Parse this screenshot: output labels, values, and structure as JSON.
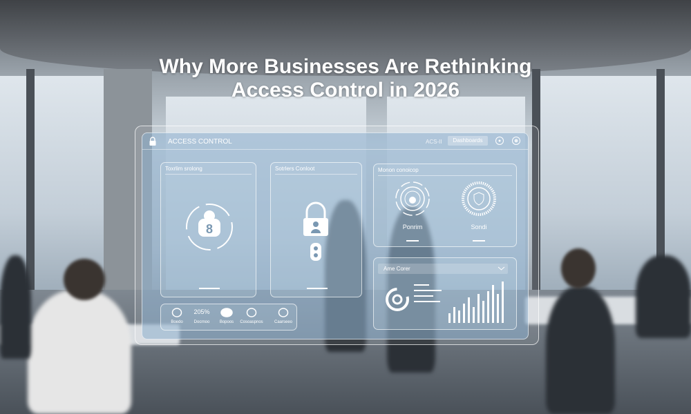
{
  "headline": {
    "line1": "Why More Businesses Are Rethinking",
    "line2": "Access Control in 2026"
  },
  "dashboard": {
    "header": {
      "title": "ACCESS CONTROL",
      "status": "ACS-II",
      "button": "Dashboards",
      "icons": [
        "lock-icon",
        "circle-button-icon",
        "settings-icon"
      ]
    },
    "cards": [
      {
        "title": "Toxrlim srolong",
        "icon": "keypad-lock-icon"
      },
      {
        "title": "Sotrlers Conloot",
        "icon": "padlock-user-icon"
      },
      {
        "title": "Monon conoicop",
        "items": [
          {
            "label": "Ponrim",
            "icon": "fingerprint-dial-icon"
          },
          {
            "label": "Sondi",
            "icon": "shield-gear-icon"
          }
        ]
      },
      {
        "title": "Ame Corer",
        "dropdown": "chevron-down-icon",
        "icon": "at-sign-icon",
        "chart_values": [
          3,
          5,
          4,
          6,
          8,
          5,
          9,
          7,
          10,
          12,
          9,
          13
        ]
      }
    ],
    "stats": [
      {
        "value": "",
        "label": "Boedo",
        "icon": "globe-icon"
      },
      {
        "value": "205%",
        "label": "Docrnoo"
      },
      {
        "value": "",
        "label": "Bopoos",
        "icon": "pill-icon"
      },
      {
        "value": "",
        "label": "Cosoaspnos",
        "icon": "badge-icon"
      },
      {
        "value": "",
        "label": "Caarseeo",
        "icon": "refresh-icon"
      }
    ]
  },
  "colors": {
    "panel": "#8cafcd",
    "text": "#ffffff"
  }
}
